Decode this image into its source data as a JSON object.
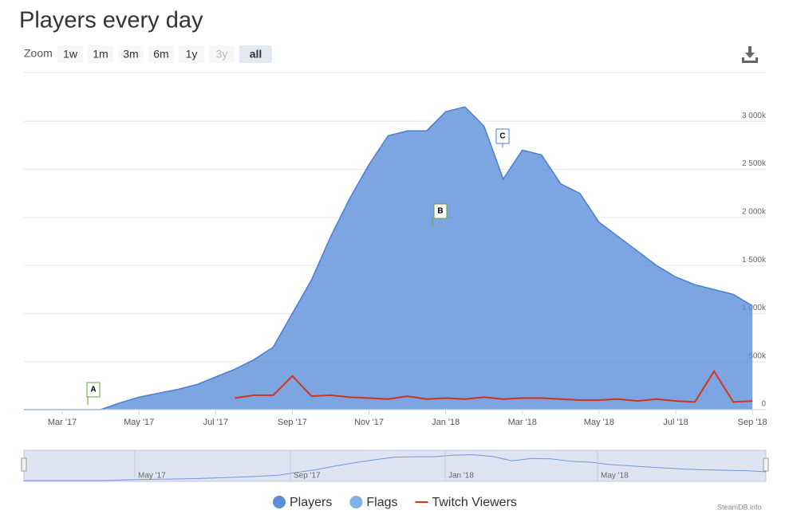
{
  "chart_data": {
    "type": "area",
    "title": "Players every day",
    "zoom": {
      "label": "Zoom",
      "buttons": [
        "1w",
        "1m",
        "3m",
        "6m",
        "1y",
        "3y",
        "all"
      ]
    },
    "categories": [
      null,
      null,
      "Mar '17",
      null,
      null,
      null,
      "May '17",
      null,
      null,
      null,
      "Jul '17",
      null,
      null,
      null,
      "Sep '17",
      null,
      null,
      null,
      "Nov '17",
      null,
      null,
      null,
      "Jan '18",
      null,
      null,
      null,
      "Mar '18",
      null,
      null,
      null,
      "May '18",
      null,
      null,
      null,
      "Jul '18",
      null,
      null,
      null,
      "Sep '18"
    ],
    "series": [
      {
        "name": "Players",
        "color": "#5b8fd9",
        "values": [
          0,
          0,
          0,
          0,
          0,
          70000,
          130000,
          170000,
          210000,
          260000,
          340000,
          420000,
          520000,
          650000,
          1000000,
          1350000,
          1800000,
          2200000,
          2550000,
          2850000,
          2900000,
          2900000,
          3100000,
          3150000,
          2950000,
          2400000,
          2700000,
          2650000,
          2350000,
          2250000,
          1950000,
          1800000,
          1650000,
          1500000,
          1380000,
          1300000,
          1250000,
          1200000,
          1080000
        ]
      },
      {
        "name": "Twitch Viewers",
        "color": "#d2341a",
        "values": [
          null,
          null,
          null,
          null,
          null,
          null,
          null,
          null,
          null,
          null,
          null,
          120000,
          150000,
          150000,
          350000,
          140000,
          150000,
          130000,
          120000,
          110000,
          140000,
          110000,
          120000,
          110000,
          130000,
          110000,
          120000,
          120000,
          110000,
          100000,
          100000,
          110000,
          90000,
          110000,
          90000,
          80000,
          400000,
          80000,
          90000
        ]
      }
    ],
    "flags": {
      "name": "Flags",
      "color": "#7fb0e8",
      "labels": [
        "A",
        "B",
        "C"
      ]
    },
    "ylim": [
      0,
      3400000
    ],
    "yticks": [
      0,
      {
        "value": 500000,
        "label": "500k"
      },
      {
        "value": 1000000,
        "label": "1 000k"
      },
      {
        "value": 1500000,
        "label": "1 500k"
      },
      {
        "value": 2000000,
        "label": "2 000k"
      },
      {
        "value": 2500000,
        "label": "2 500k"
      },
      {
        "value": 3000000,
        "label": "3 000k"
      }
    ],
    "grid": true,
    "navigator_labels": [
      "May '17",
      "Sep '17",
      "Jan '18",
      "May '18"
    ],
    "credit": "SteamDB.info"
  }
}
